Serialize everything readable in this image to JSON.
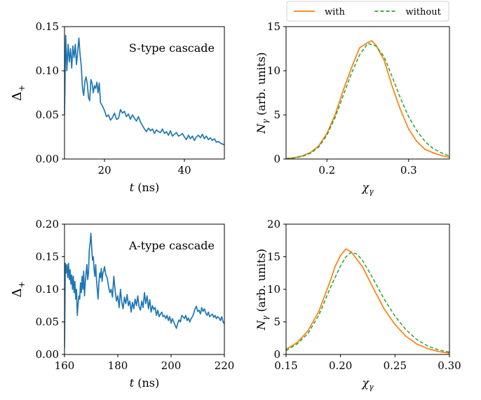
{
  "chart_data": [
    {
      "type": "line",
      "annotation": "S-type cascade",
      "xlabel_main": "t",
      "xlabel_unit": " (ns)",
      "ylabel_main": "Δ",
      "ylabel_sub": "+",
      "xlim": [
        10,
        50
      ],
      "ylim": [
        0,
        0.15
      ],
      "xticks": [
        20,
        40
      ],
      "xtick_labels": [
        "20",
        "40"
      ],
      "yticks": [
        0,
        0.05,
        0.1,
        0.15
      ],
      "ytick_labels": [
        "0.00",
        "0.05",
        "0.10",
        "0.15"
      ],
      "series": [
        {
          "color": "#1f77b4",
          "x": [
            10.0,
            10.3,
            10.6,
            10.9,
            11.2,
            11.5,
            11.8,
            12.1,
            12.4,
            12.7,
            13.0,
            13.3,
            13.6,
            13.9,
            14.2,
            14.5,
            14.8,
            15.1,
            15.4,
            15.7,
            16.0,
            16.3,
            16.6,
            16.9,
            17.2,
            17.5,
            17.8,
            18.1,
            18.4,
            18.7,
            19.0,
            19.5,
            20.0,
            20.5,
            21.0,
            21.5,
            22.0,
            22.5,
            23.0,
            23.5,
            24.0,
            24.5,
            25.0,
            25.5,
            26.0,
            26.5,
            27.0,
            27.5,
            28.0,
            28.5,
            29.0,
            29.5,
            30.0,
            30.5,
            31.0,
            31.5,
            32.0,
            32.5,
            33.0,
            33.5,
            34.0,
            34.5,
            35.0,
            35.5,
            36.0,
            36.5,
            37.0,
            37.5,
            38.0,
            38.5,
            39.0,
            39.5,
            40.0,
            40.5,
            41.0,
            41.5,
            42.0,
            42.5,
            43.0,
            43.5,
            44.0,
            44.5,
            45.0,
            45.5,
            46.0,
            46.5,
            47.0,
            47.5,
            48.0,
            48.5,
            49.0,
            49.5,
            50.0
          ],
          "y": [
            0.05,
            0.14,
            0.1,
            0.13,
            0.11,
            0.125,
            0.103,
            0.128,
            0.115,
            0.13,
            0.107,
            0.122,
            0.137,
            0.118,
            0.105,
            0.08,
            0.072,
            0.088,
            0.093,
            0.085,
            0.07,
            0.066,
            0.09,
            0.086,
            0.075,
            0.083,
            0.08,
            0.087,
            0.075,
            0.086,
            0.064,
            0.06,
            0.055,
            0.048,
            0.05,
            0.044,
            0.047,
            0.052,
            0.045,
            0.046,
            0.056,
            0.052,
            0.054,
            0.048,
            0.051,
            0.045,
            0.05,
            0.046,
            0.043,
            0.048,
            0.042,
            0.038,
            0.034,
            0.031,
            0.035,
            0.032,
            0.034,
            0.029,
            0.033,
            0.031,
            0.03,
            0.034,
            0.029,
            0.031,
            0.027,
            0.032,
            0.026,
            0.028,
            0.03,
            0.026,
            0.027,
            0.029,
            0.025,
            0.022,
            0.027,
            0.023,
            0.026,
            0.021,
            0.025,
            0.027,
            0.024,
            0.028,
            0.023,
            0.026,
            0.022,
            0.024,
            0.021,
            0.023,
            0.019,
            0.02,
            0.018,
            0.017,
            0.016
          ]
        }
      ]
    },
    {
      "type": "line",
      "xlabel_main": "χ",
      "xlabel_sub": "γ",
      "ylabel_main": "N",
      "ylabel_sub": "γ",
      "ylabel_unit": " (arb. units)",
      "xlim": [
        0.15,
        0.35
      ],
      "ylim": [
        0,
        15
      ],
      "xticks": [
        0.2,
        0.3
      ],
      "xtick_labels": [
        "0.2",
        "0.3"
      ],
      "yticks": [
        0,
        5,
        10,
        15
      ],
      "ytick_labels": [
        "0",
        "5",
        "10",
        "15"
      ],
      "legend": {
        "placement": "above the plot",
        "entries": [
          {
            "label": "with",
            "color": "#ff7f0e",
            "dash": "solid"
          },
          {
            "label": "without",
            "color": "#2ca02c",
            "dash": "dashed"
          }
        ]
      },
      "series": [
        {
          "name": "with",
          "color": "#ff7f0e",
          "dash": "solid",
          "x": [
            0.15,
            0.16,
            0.17,
            0.18,
            0.19,
            0.2,
            0.21,
            0.22,
            0.23,
            0.24,
            0.25,
            0.255,
            0.26,
            0.27,
            0.28,
            0.29,
            0.3,
            0.31,
            0.32,
            0.33,
            0.34,
            0.35
          ],
          "y": [
            0.05,
            0.15,
            0.35,
            0.75,
            1.5,
            2.9,
            5.0,
            7.8,
            10.3,
            12.6,
            13.2,
            13.4,
            12.9,
            11.2,
            8.2,
            5.6,
            3.4,
            2.0,
            1.1,
            0.7,
            0.4,
            0.2
          ]
        },
        {
          "name": "without",
          "color": "#2ca02c",
          "dash": "dashed",
          "x": [
            0.15,
            0.16,
            0.17,
            0.18,
            0.19,
            0.2,
            0.21,
            0.22,
            0.23,
            0.24,
            0.25,
            0.26,
            0.27,
            0.28,
            0.29,
            0.3,
            0.31,
            0.32,
            0.33,
            0.34,
            0.35
          ],
          "y": [
            0.05,
            0.12,
            0.3,
            0.65,
            1.35,
            2.7,
            4.7,
            7.2,
            9.7,
            11.8,
            13.1,
            12.8,
            11.6,
            9.3,
            6.9,
            4.8,
            3.2,
            2.0,
            1.2,
            0.7,
            0.35
          ]
        }
      ]
    },
    {
      "type": "line",
      "annotation": "A-type cascade",
      "xlabel_main": "t",
      "xlabel_unit": " (ns)",
      "ylabel_main": "Δ",
      "ylabel_sub": "+",
      "xlim": [
        160,
        220
      ],
      "ylim": [
        0,
        0.2
      ],
      "xticks": [
        160,
        180,
        200,
        220
      ],
      "xtick_labels": [
        "160",
        "180",
        "200",
        "220"
      ],
      "yticks": [
        0,
        0.05,
        0.1,
        0.15,
        0.2
      ],
      "ytick_labels": [
        "0.00",
        "0.05",
        "0.10",
        "0.15",
        "0.20"
      ],
      "series": [
        {
          "color": "#1f77b4",
          "x": [
            160.0,
            160.3,
            160.6,
            160.9,
            161.2,
            161.5,
            161.8,
            162.1,
            162.4,
            162.7,
            163.0,
            163.3,
            163.6,
            163.9,
            164.2,
            164.5,
            164.8,
            165.1,
            165.4,
            165.7,
            166.0,
            166.3,
            166.6,
            166.9,
            167.2,
            167.5,
            167.8,
            168.1,
            168.4,
            168.7,
            169.0,
            169.3,
            169.6,
            169.9,
            170.2,
            170.5,
            170.8,
            171.1,
            171.4,
            171.7,
            172.0,
            172.3,
            172.6,
            172.9,
            173.2,
            173.5,
            173.8,
            174.1,
            174.4,
            174.7,
            175.0,
            175.5,
            176.0,
            176.5,
            177.0,
            177.5,
            178.0,
            178.5,
            179.0,
            179.5,
            180.0,
            180.5,
            181.0,
            181.5,
            182.0,
            182.5,
            183.0,
            183.5,
            184.0,
            184.5,
            185.0,
            185.5,
            186.0,
            186.5,
            187.0,
            187.5,
            188.0,
            188.5,
            189.0,
            189.5,
            190.0,
            190.5,
            191.0,
            191.5,
            192.0,
            192.5,
            193.0,
            193.5,
            194.0,
            194.5,
            195.0,
            195.5,
            196.0,
            196.5,
            197.0,
            197.5,
            198.0,
            198.5,
            199.0,
            199.5,
            200.0,
            200.5,
            201.0,
            201.5,
            202.0,
            202.5,
            203.0,
            203.5,
            204.0,
            204.5,
            205.0,
            205.5,
            206.0,
            206.5,
            207.0,
            207.5,
            208.0,
            208.5,
            209.0,
            209.5,
            210.0,
            210.5,
            211.0,
            211.5,
            212.0,
            212.5,
            213.0,
            213.5,
            214.0,
            214.5,
            215.0,
            215.5,
            216.0,
            216.5,
            217.0,
            217.5,
            218.0,
            218.5,
            219.0,
            219.5,
            220.0
          ],
          "y": [
            0.01,
            0.14,
            0.125,
            0.138,
            0.118,
            0.14,
            0.115,
            0.13,
            0.108,
            0.122,
            0.1,
            0.12,
            0.095,
            0.112,
            0.085,
            0.1,
            0.06,
            0.078,
            0.09,
            0.085,
            0.11,
            0.095,
            0.12,
            0.1,
            0.128,
            0.09,
            0.11,
            0.125,
            0.138,
            0.115,
            0.125,
            0.16,
            0.17,
            0.186,
            0.165,
            0.145,
            0.15,
            0.13,
            0.12,
            0.138,
            0.115,
            0.1,
            0.085,
            0.11,
            0.125,
            0.118,
            0.132,
            0.112,
            0.125,
            0.128,
            0.135,
            0.122,
            0.118,
            0.105,
            0.095,
            0.1,
            0.088,
            0.12,
            0.098,
            0.082,
            0.09,
            0.072,
            0.1,
            0.08,
            0.07,
            0.088,
            0.078,
            0.092,
            0.075,
            0.082,
            0.065,
            0.08,
            0.07,
            0.085,
            0.075,
            0.09,
            0.073,
            0.068,
            0.082,
            0.072,
            0.095,
            0.078,
            0.09,
            0.07,
            0.084,
            0.065,
            0.075,
            0.069,
            0.072,
            0.06,
            0.068,
            0.058,
            0.062,
            0.065,
            0.058,
            0.06,
            0.055,
            0.06,
            0.052,
            0.058,
            0.048,
            0.055,
            0.05,
            0.045,
            0.04,
            0.048,
            0.053,
            0.05,
            0.06,
            0.058,
            0.055,
            0.06,
            0.052,
            0.056,
            0.05,
            0.055,
            0.058,
            0.063,
            0.07,
            0.074,
            0.066,
            0.068,
            0.062,
            0.072,
            0.066,
            0.07,
            0.064,
            0.06,
            0.065,
            0.058,
            0.06,
            0.062,
            0.057,
            0.06,
            0.055,
            0.058,
            0.056,
            0.052,
            0.058,
            0.05,
            0.047
          ]
        }
      ]
    },
    {
      "type": "line",
      "xlabel_main": "χ",
      "xlabel_sub": "γ",
      "ylabel_main": "N",
      "ylabel_sub": "γ",
      "ylabel_unit": " (arb. units)",
      "xlim": [
        0.15,
        0.3
      ],
      "ylim": [
        0,
        20
      ],
      "xticks": [
        0.15,
        0.2,
        0.25,
        0.3
      ],
      "xtick_labels": [
        "0.15",
        "0.20",
        "0.25",
        "0.30"
      ],
      "yticks": [
        0,
        5,
        10,
        15,
        20
      ],
      "ytick_labels": [
        "0",
        "5",
        "10",
        "15",
        "20"
      ],
      "series": [
        {
          "name": "with",
          "color": "#ff7f0e",
          "dash": "solid",
          "x": [
            0.15,
            0.16,
            0.17,
            0.18,
            0.19,
            0.195,
            0.2,
            0.205,
            0.21,
            0.22,
            0.23,
            0.24,
            0.25,
            0.26,
            0.27,
            0.28,
            0.29,
            0.3
          ],
          "y": [
            0.8,
            1.8,
            3.6,
            6.6,
            11.0,
            13.5,
            15.2,
            16.2,
            15.7,
            13.5,
            10.2,
            7.0,
            4.6,
            2.8,
            1.6,
            0.9,
            0.45,
            0.2
          ]
        },
        {
          "name": "without",
          "color": "#2ca02c",
          "dash": "dashed",
          "x": [
            0.15,
            0.16,
            0.17,
            0.18,
            0.19,
            0.2,
            0.205,
            0.21,
            0.215,
            0.22,
            0.23,
            0.24,
            0.25,
            0.26,
            0.27,
            0.28,
            0.29,
            0.3
          ],
          "y": [
            0.6,
            1.6,
            3.2,
            6.0,
            10.0,
            13.6,
            15.0,
            15.7,
            15.4,
            14.5,
            11.6,
            8.5,
            5.9,
            3.8,
            2.3,
            1.3,
            0.7,
            0.35
          ]
        }
      ]
    }
  ]
}
